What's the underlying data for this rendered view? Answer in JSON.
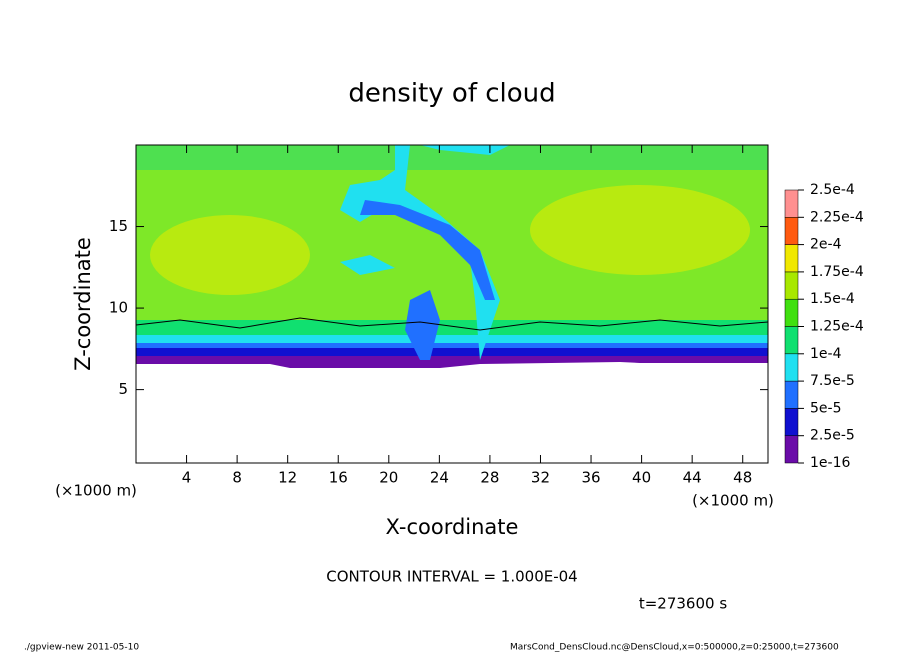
{
  "chart_data": {
    "type": "contour",
    "title": "density of cloud",
    "x_label": "X-coordinate",
    "y_label": "Z-coordinate",
    "x_unit": "(×1000 m)",
    "y_unit": "(×1000 m)",
    "xlim": [
      0,
      50
    ],
    "ylim": [
      0.5,
      20
    ],
    "xticks": [
      4,
      8,
      12,
      16,
      20,
      24,
      28,
      32,
      36,
      40,
      44,
      48
    ],
    "yticks": [
      5,
      10,
      15
    ],
    "colorbar": {
      "levels": [
        {
          "value": 1e-16,
          "label": "1e-16"
        },
        {
          "value": 2.5e-05,
          "label": "2.5e-5"
        },
        {
          "value": 5e-05,
          "label": "5e-5"
        },
        {
          "value": 7.5e-05,
          "label": "7.5e-5"
        },
        {
          "value": 0.0001,
          "label": "1e-4"
        },
        {
          "value": 0.000125,
          "label": "1.25e-4"
        },
        {
          "value": 0.00015,
          "label": "1.5e-4"
        },
        {
          "value": 0.000175,
          "label": "1.75e-4"
        },
        {
          "value": 0.0002,
          "label": "2e-4"
        },
        {
          "value": 0.000225,
          "label": "2.25e-4"
        },
        {
          "value": 0.00025,
          "label": "2.5e-4"
        }
      ],
      "colors": [
        "#6a0ca8",
        "#1010d0",
        "#2070ff",
        "#20e0f0",
        "#10e070",
        "#40e010",
        "#a8e800",
        "#f0e800",
        "#ff5a10",
        "#ff9090"
      ]
    },
    "contour_interval": "CONTOUR INTERVAL = 1.000E-04",
    "time_label": "t=273600 s",
    "footer_left": "./gpview-new  2011-05-10",
    "footer_right": "MarsCond_DensCloud.nc@DensCloud,x=0:500000,z=0:25000,t=273600"
  }
}
